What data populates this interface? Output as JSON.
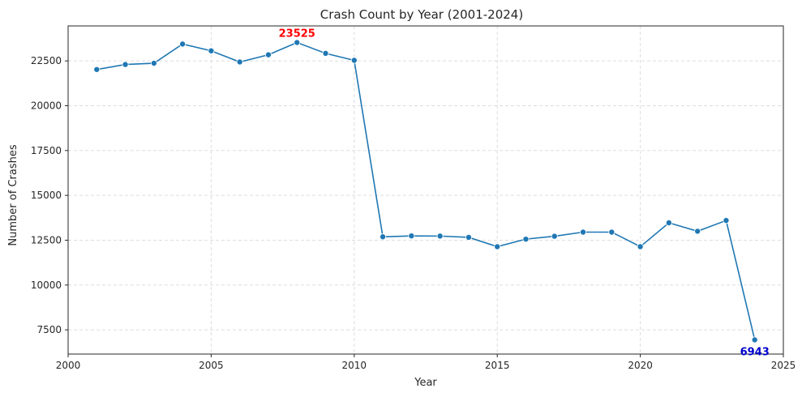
{
  "chart_data": {
    "type": "line",
    "title": "Crash Count by Year (2001-2024)",
    "xlabel": "Year",
    "ylabel": "Number of Crashes",
    "xlim": [
      2000,
      2025
    ],
    "ylim": [
      6150,
      24450
    ],
    "xticks": [
      2000,
      2005,
      2010,
      2015,
      2020,
      2025
    ],
    "yticks": [
      7500,
      10000,
      12500,
      15000,
      17500,
      20000,
      22500
    ],
    "grid": true,
    "grid_style": "dashed",
    "line_color": "#1f77b4",
    "marker": "circle",
    "series": [
      {
        "x": [
          2001,
          2002,
          2003,
          2004,
          2005,
          2006,
          2007,
          2008,
          2009,
          2010,
          2011,
          2012,
          2013,
          2014,
          2015,
          2016,
          2017,
          2018,
          2019,
          2020,
          2021,
          2022,
          2023,
          2024
        ],
        "y": [
          22020,
          22300,
          22370,
          23440,
          23060,
          22440,
          22840,
          23525,
          22920,
          22530,
          12690,
          12740,
          12730,
          12660,
          12140,
          12560,
          12720,
          12950,
          12950,
          12140,
          13470,
          13000,
          13600,
          6943
        ]
      }
    ],
    "annotations": [
      {
        "text": "23525",
        "x": 2008,
        "y": 23525,
        "color": "#ff0000",
        "position": "above"
      },
      {
        "text": "6943",
        "x": 2024,
        "y": 6943,
        "color": "#0000cc",
        "position": "below"
      }
    ]
  }
}
